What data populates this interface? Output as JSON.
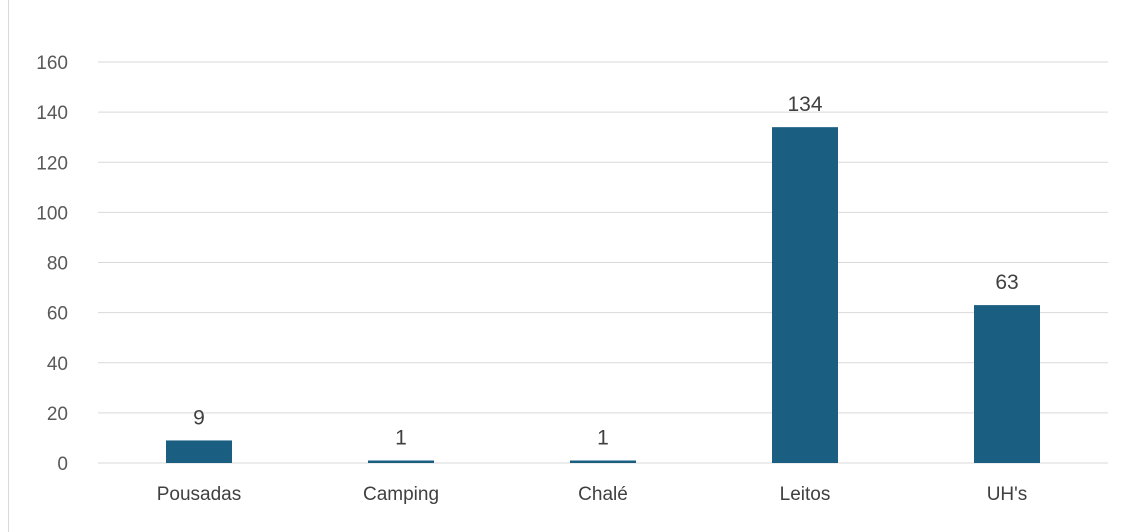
{
  "chart_data": {
    "type": "bar",
    "categories": [
      "Pousadas",
      "Camping",
      "Chalé",
      "Leitos",
      "UH's"
    ],
    "values": [
      9,
      1,
      1,
      134,
      63
    ],
    "data_labels": [
      "9",
      "1",
      "1",
      "134",
      "63"
    ],
    "y_ticks": [
      0,
      20,
      40,
      60,
      80,
      100,
      120,
      140,
      160
    ],
    "ylim": [
      0,
      160
    ],
    "grid": true,
    "legend": "none",
    "bar_color": "#1a5e82",
    "gridline_color": "#d9d9d9"
  }
}
